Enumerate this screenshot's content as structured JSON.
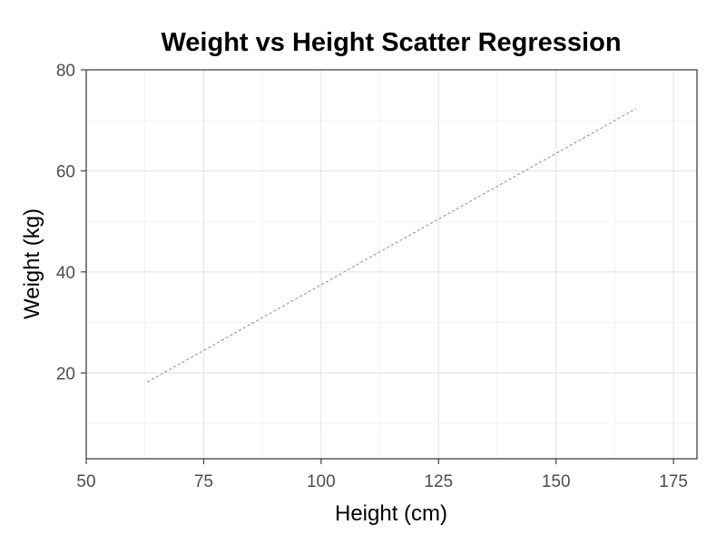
{
  "chart_data": {
    "type": "line",
    "title": "Weight vs Height Scatter Regression",
    "xlabel": "Height (cm)",
    "ylabel": "Weight (kg)",
    "xlim": [
      50,
      180
    ],
    "ylim": [
      3,
      80
    ],
    "x_ticks": [
      50,
      75,
      100,
      125,
      150,
      175
    ],
    "y_ticks": [
      20,
      40,
      60,
      80
    ],
    "x_ticks_labels": [
      "50",
      "75",
      "100",
      "125",
      "150",
      "175"
    ],
    "y_ticks_labels": [
      "20",
      "40",
      "60",
      "80"
    ],
    "grid": true,
    "legend": "none",
    "series": [
      {
        "style": "dashed",
        "color": "#808080",
        "x": [
          63,
          167
        ],
        "y": [
          18.2,
          72.3
        ]
      }
    ]
  }
}
